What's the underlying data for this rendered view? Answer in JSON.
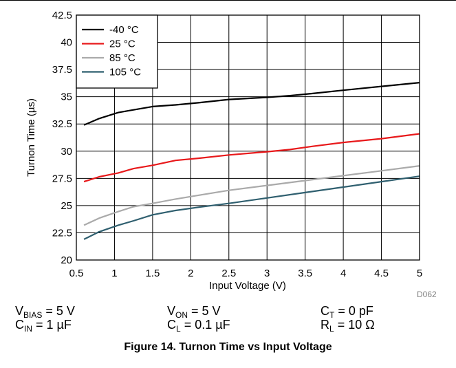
{
  "chart_data": {
    "type": "line",
    "title": "",
    "xlabel": "Input Voltage (V)",
    "ylabel": "Turnon Time (µs)",
    "xlim": [
      0.5,
      5
    ],
    "ylim": [
      20,
      42.5
    ],
    "xticks": [
      0.5,
      1,
      1.5,
      2,
      2.5,
      3,
      3.5,
      4,
      4.5,
      5
    ],
    "xtick_labels": [
      "0.5",
      "1",
      "1.5",
      "2",
      "2.5",
      "3",
      "3.5",
      "4",
      "4.5",
      "5"
    ],
    "yticks": [
      20,
      22.5,
      25,
      27.5,
      30,
      32.5,
      35,
      37.5,
      40,
      42.5
    ],
    "ytick_labels": [
      "20",
      "22.5",
      "25",
      "27.5",
      "30",
      "32.5",
      "35",
      "37.5",
      "40",
      "42.5"
    ],
    "grid": true,
    "legend_position": "top-left",
    "series": [
      {
        "name": "-40 °C",
        "color": "#000000",
        "x": [
          0.6,
          0.8,
          1.05,
          1.25,
          1.5,
          1.8,
          2.1,
          2.5,
          3.0,
          3.3,
          3.6,
          4.0,
          4.5,
          5.0
        ],
        "y": [
          32.4,
          33.0,
          33.55,
          33.8,
          34.1,
          34.25,
          34.45,
          34.75,
          34.95,
          35.1,
          35.3,
          35.6,
          35.95,
          36.3
        ]
      },
      {
        "name": "25 °C",
        "color": "#e8191b",
        "x": [
          0.6,
          0.8,
          1.05,
          1.25,
          1.5,
          1.8,
          2.1,
          2.5,
          3.0,
          3.3,
          3.6,
          4.0,
          4.5,
          5.0
        ],
        "y": [
          27.2,
          27.65,
          28.0,
          28.4,
          28.7,
          29.15,
          29.35,
          29.65,
          29.95,
          30.15,
          30.45,
          30.8,
          31.15,
          31.6
        ]
      },
      {
        "name": "85 °C",
        "color": "#aaaaaa",
        "x": [
          0.6,
          0.8,
          1.05,
          1.25,
          1.5,
          1.8,
          2.1,
          2.5,
          3.0,
          3.5,
          4.0,
          4.5,
          5.0
        ],
        "y": [
          23.2,
          23.85,
          24.45,
          24.9,
          25.2,
          25.6,
          25.95,
          26.4,
          26.85,
          27.3,
          27.75,
          28.2,
          28.65
        ]
      },
      {
        "name": "105 °C",
        "color": "#2f5f6f",
        "x": [
          0.6,
          0.8,
          1.05,
          1.25,
          1.5,
          1.8,
          2.1,
          2.5,
          3.0,
          3.5,
          4.0,
          4.5,
          5.0
        ],
        "y": [
          21.9,
          22.6,
          23.2,
          23.6,
          24.15,
          24.55,
          24.85,
          25.2,
          25.7,
          26.2,
          26.7,
          27.2,
          27.7
        ]
      }
    ]
  },
  "conditions": {
    "vbias": {
      "sym": "V",
      "sub": "BIAS",
      "val": " = 5 V"
    },
    "cin": {
      "sym": "C",
      "sub": "IN",
      "val": " = 1 µF"
    },
    "von": {
      "sym": "V",
      "sub": "ON",
      "val": " = 5 V"
    },
    "cl": {
      "sym": "C",
      "sub": "L",
      "val": " = 0.1 µF"
    },
    "ct": {
      "sym": "C",
      "sub": "T",
      "val": " = 0 pF"
    },
    "rl": {
      "sym": "R",
      "sub": "L",
      "val": " = 10 Ω"
    }
  },
  "figure_code": "D062",
  "caption": "Figure 14. Turnon Time vs Input Voltage"
}
